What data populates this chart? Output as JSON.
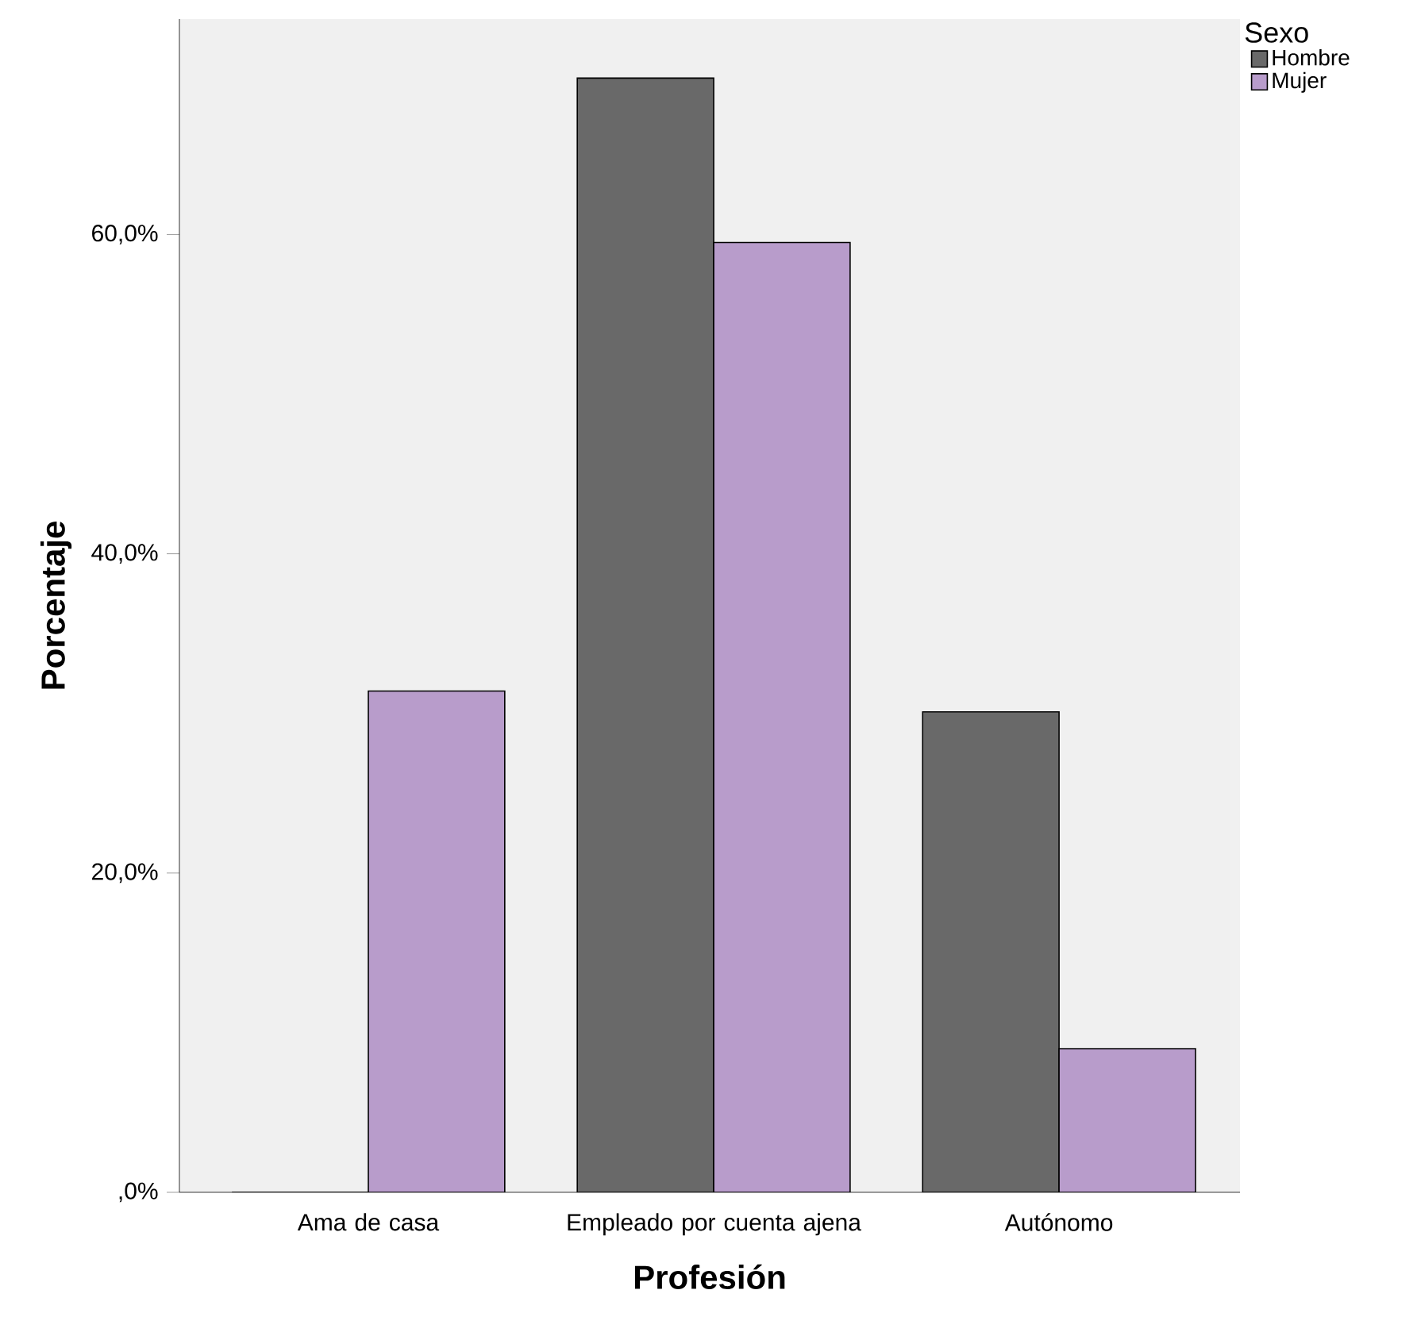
{
  "chart_data": {
    "type": "bar",
    "xlabel": "Profesión",
    "ylabel": "Porcentaje",
    "legend_title": "Sexo",
    "categories": [
      "Ama de casa",
      "Empleado por cuenta ajena",
      "Autónomo"
    ],
    "series": [
      {
        "name": "Hombre",
        "color": "#696969",
        "values": [
          0,
          69.8,
          30.1
        ]
      },
      {
        "name": "Mujer",
        "color": "#b89ccb",
        "values": [
          31.4,
          59.5,
          9.0
        ]
      }
    ],
    "ylim": [
      0,
      73.5
    ],
    "yticks": [
      {
        "value": 0,
        "label": ",0%"
      },
      {
        "value": 20,
        "label": "20,0%"
      },
      {
        "value": 40,
        "label": "40,0%"
      },
      {
        "value": 60,
        "label": "60,0%"
      }
    ],
    "legend": "top right",
    "grid": false
  }
}
